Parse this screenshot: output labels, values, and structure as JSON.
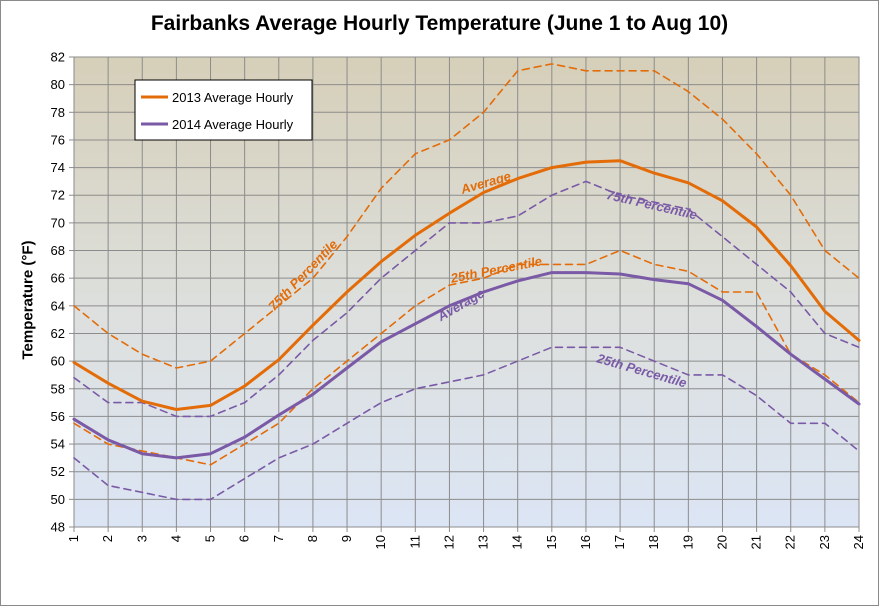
{
  "chart_data": {
    "type": "line",
    "title": "Fairbanks Average Hourly Temperature (June 1 to Aug 10)",
    "xlabel": "",
    "ylabel": "Temperature (°F)",
    "x": [
      1,
      2,
      3,
      4,
      5,
      6,
      7,
      8,
      9,
      10,
      11,
      12,
      13,
      14,
      15,
      16,
      17,
      18,
      19,
      20,
      21,
      22,
      23,
      24
    ],
    "ylim": [
      48,
      82
    ],
    "yticks": [
      48,
      50,
      52,
      54,
      56,
      58,
      60,
      62,
      64,
      66,
      68,
      70,
      72,
      74,
      76,
      78,
      80,
      82
    ],
    "grid": true,
    "legend_position": "top-left",
    "series": [
      {
        "name": "2013 Average Hourly",
        "color": "#E36C09",
        "style": "solid",
        "values": [
          59.9,
          58.4,
          57.1,
          56.5,
          56.8,
          58.2,
          60.1,
          62.6,
          65.0,
          67.2,
          69.1,
          70.7,
          72.2,
          73.2,
          74.0,
          74.4,
          74.5,
          73.6,
          72.9,
          71.6,
          69.7,
          66.9,
          63.6,
          61.5
        ]
      },
      {
        "name": "2014 Average Hourly",
        "color": "#7A5AA6",
        "style": "solid",
        "values": [
          55.8,
          54.3,
          53.3,
          53.0,
          53.3,
          54.5,
          56.1,
          57.6,
          59.5,
          61.4,
          62.7,
          64.0,
          65.0,
          65.8,
          66.4,
          66.4,
          66.3,
          65.9,
          65.6,
          64.4,
          62.5,
          60.5,
          58.7,
          56.9
        ]
      },
      {
        "color": "#E36C09",
        "style": "dashed",
        "values": [
          64.0,
          62.0,
          60.5,
          59.5,
          60.0,
          62.0,
          64.0,
          66.0,
          69.0,
          72.5,
          75.0,
          76.0,
          78.0,
          81.0,
          81.5,
          81.0,
          81.0,
          81.0,
          79.5,
          77.5,
          75.0,
          72.0,
          68.0,
          66.0
        ]
      },
      {
        "color": "#E36C09",
        "style": "dashed",
        "values": [
          55.5,
          54.0,
          53.5,
          53.0,
          52.5,
          54.0,
          55.5,
          58.0,
          60.0,
          62.0,
          64.0,
          65.5,
          66.0,
          67.0,
          67.0,
          67.0,
          68.0,
          67.0,
          66.5,
          65.0,
          65.0,
          60.5,
          59.0,
          57.0
        ]
      },
      {
        "color": "#7A5AA6",
        "style": "dashed",
        "values": [
          58.8,
          57.0,
          57.0,
          56.0,
          56.0,
          57.0,
          59.0,
          61.5,
          63.5,
          66.0,
          68.0,
          70.0,
          70.0,
          70.5,
          72.0,
          73.0,
          72.0,
          71.5,
          71.0,
          69.0,
          67.0,
          65.0,
          62.0,
          61.0
        ]
      },
      {
        "color": "#7A5AA6",
        "style": "dashed",
        "values": [
          53.0,
          51.0,
          50.5,
          50.0,
          50.0,
          51.5,
          53.0,
          54.0,
          55.5,
          57.0,
          58.0,
          58.5,
          59.0,
          60.0,
          61.0,
          61.0,
          61.0,
          60.0,
          59.0,
          59.0,
          57.5,
          55.5,
          55.5,
          53.5
        ]
      }
    ],
    "legend": [
      "2013 Average Hourly",
      "2014 Average Hourly"
    ],
    "annotations": [
      {
        "text": "75th Percentile",
        "color": "#E36C09",
        "x": 7.8,
        "y": 66.0,
        "angle": -46
      },
      {
        "text": "Average",
        "color": "#E36C09",
        "x": 13.1,
        "y": 72.6,
        "angle": -16
      },
      {
        "text": "25th Percentile",
        "color": "#E36C09",
        "x": 13.4,
        "y": 66.3,
        "angle": -11
      },
      {
        "text": "75th Percentile",
        "color": "#7A5AA6",
        "x": 17.9,
        "y": 71.0,
        "angle": 13
      },
      {
        "text": "Average",
        "color": "#7A5AA6",
        "x": 12.4,
        "y": 63.8,
        "angle": -30
      },
      {
        "text": "25th Percentile",
        "color": "#7A5AA6",
        "x": 17.6,
        "y": 59.0,
        "angle": 16
      }
    ]
  }
}
